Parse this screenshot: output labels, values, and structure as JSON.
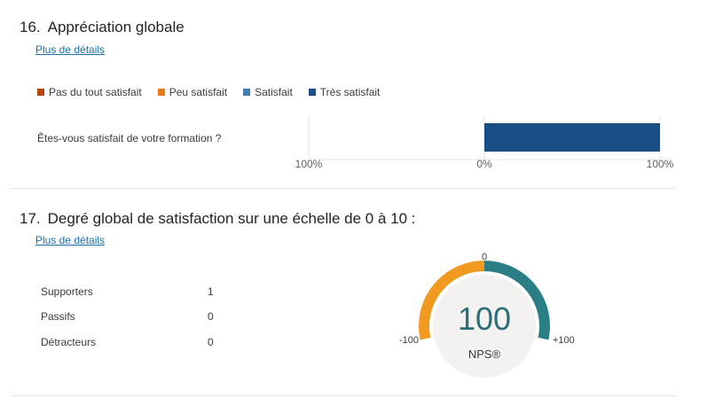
{
  "q16": {
    "number": "16.",
    "title": "Appréciation globale",
    "details_link": "Plus de détails"
  },
  "q17": {
    "number": "17.",
    "title": "Degré global de satisfaction sur une échelle de 0 à 10 :",
    "details_link": "Plus de détails"
  },
  "chart_data": [
    {
      "type": "bar",
      "orientation": "horizontal-diverging",
      "title": "Appréciation globale",
      "legend": [
        {
          "label": "Pas du tout satisfait",
          "color": "#b5440f"
        },
        {
          "label": "Peu satisfait",
          "color": "#e07a1b"
        },
        {
          "label": "Satisfait",
          "color": "#3f7fb3"
        },
        {
          "label": "Très satisfait",
          "color": "#1a4f86"
        }
      ],
      "categories": [
        "Êtes-vous satisfait de votre formation ?"
      ],
      "series": [
        {
          "name": "Pas du tout satisfait",
          "values": [
            0
          ]
        },
        {
          "name": "Peu satisfait",
          "values": [
            0
          ]
        },
        {
          "name": "Satisfait",
          "values": [
            0
          ]
        },
        {
          "name": "Très satisfait",
          "values": [
            100
          ]
        }
      ],
      "xlim": [
        -100,
        100
      ],
      "tick_labels": [
        "100%",
        "0%",
        "100%"
      ],
      "grid": true,
      "legend_placement": "top-left"
    },
    {
      "type": "gauge",
      "title": "Degré global de satisfaction sur une échelle de 0 à 10 :",
      "metric_label": "NPS®",
      "value": 100,
      "range": [
        -100,
        100
      ],
      "range_labels": {
        "min": "-100",
        "mid": "0",
        "max": "+100"
      },
      "colors": {
        "negative": "#f09a20",
        "positive": "#2a7f86",
        "value_text": "#2a6f78"
      },
      "rows": [
        {
          "label": "Supporters",
          "value": "1"
        },
        {
          "label": "Passifs",
          "value": "0"
        },
        {
          "label": "Détracteurs",
          "value": "0"
        }
      ]
    }
  ]
}
